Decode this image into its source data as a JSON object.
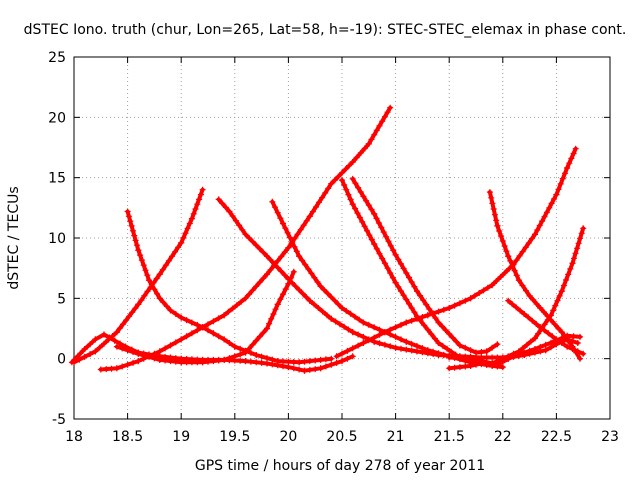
{
  "chart_data": {
    "type": "scatter",
    "title": "dSTEC Iono. truth (chur, Lon=265, Lat=58, h=-19): STEC-STEC_elemax in phase cont.",
    "xlabel": "GPS time / hours of day 278 of year 2011",
    "ylabel": "dSTEC  / TECUs",
    "xlim": [
      18,
      23
    ],
    "ylim": [
      -5,
      25
    ],
    "x_ticks": [
      "18",
      "18.5",
      "19",
      "19.5",
      "20",
      "20.5",
      "21",
      "21.5",
      "22",
      "22.5",
      "23"
    ],
    "y_ticks": [
      "-5",
      "0",
      "5",
      "10",
      "15",
      "20",
      "25"
    ],
    "grid": true,
    "marker": "+",
    "color": "#ff0000",
    "series": [
      {
        "x": [
          17.98,
          18.1,
          18.2,
          18.28,
          18.38,
          18.48,
          18.6,
          18.8,
          19.0,
          19.2,
          19.4,
          19.6,
          19.8,
          20.0,
          20.15,
          20.3,
          20.5,
          20.6
        ],
        "y": [
          -0.3,
          0.8,
          1.6,
          2.0,
          1.5,
          1.0,
          0.5,
          0.2,
          0.0,
          -0.1,
          -0.1,
          -0.2,
          -0.4,
          -0.7,
          -1.0,
          -0.8,
          -0.2,
          0.2
        ]
      },
      {
        "x": [
          18.0,
          18.2,
          18.4,
          18.6,
          18.8,
          19.0,
          19.1,
          19.2
        ],
        "y": [
          -0.3,
          0.6,
          2.2,
          4.5,
          7.0,
          9.6,
          11.6,
          14.0
        ]
      },
      {
        "x": [
          18.5,
          18.6,
          18.7,
          18.8,
          18.9,
          19.0,
          19.1,
          19.2,
          19.3,
          19.4,
          19.5,
          19.7,
          19.9,
          20.1,
          20.4
        ],
        "y": [
          12.2,
          9.0,
          6.5,
          5.0,
          4.0,
          3.4,
          3.0,
          2.6,
          2.1,
          1.6,
          1.0,
          0.3,
          -0.2,
          -0.3,
          0.0
        ]
      },
      {
        "x": [
          18.25,
          18.4,
          18.6,
          18.8,
          19.0,
          19.2,
          19.4,
          19.6,
          19.8,
          20.0,
          20.2,
          20.4,
          20.6,
          20.75,
          20.85,
          20.95
        ],
        "y": [
          -0.9,
          -0.8,
          -0.2,
          0.6,
          1.6,
          2.6,
          3.6,
          5.0,
          7.0,
          9.2,
          11.8,
          14.5,
          16.3,
          17.8,
          19.3,
          20.8
        ]
      },
      {
        "x": [
          18.4,
          18.6,
          18.8,
          19.0,
          19.2,
          19.4,
          19.6,
          19.8,
          19.9,
          20.0,
          20.05
        ],
        "y": [
          1.0,
          0.4,
          -0.1,
          -0.3,
          -0.3,
          -0.1,
          0.5,
          2.5,
          4.5,
          6.2,
          7.2
        ]
      },
      {
        "x": [
          19.35,
          19.45,
          19.6,
          19.8,
          20.0,
          20.2,
          20.4,
          20.6,
          20.8,
          21.0,
          21.2,
          21.4,
          21.6,
          21.8,
          22.0,
          22.2
        ],
        "y": [
          13.2,
          12.2,
          10.3,
          8.5,
          6.6,
          4.8,
          3.3,
          2.2,
          1.4,
          0.9,
          0.6,
          0.3,
          0.2,
          0.1,
          0.1,
          0.3
        ]
      },
      {
        "x": [
          19.85,
          19.95,
          20.1,
          20.3,
          20.5,
          20.7,
          20.9,
          21.1,
          21.3,
          21.5,
          21.7,
          21.9,
          22.0
        ],
        "y": [
          13.0,
          11.2,
          8.5,
          6.0,
          4.2,
          3.0,
          2.2,
          1.4,
          0.7,
          0.2,
          -0.3,
          -0.6,
          -0.7
        ]
      },
      {
        "x": [
          20.5,
          20.6,
          20.8,
          21.0,
          21.2,
          21.4,
          21.6,
          21.8,
          21.95
        ],
        "y": [
          14.8,
          12.8,
          9.5,
          6.3,
          3.5,
          1.3,
          0.1,
          -0.3,
          -0.4
        ]
      },
      {
        "x": [
          20.6,
          20.8,
          21.0,
          21.2,
          21.4,
          21.6,
          21.75,
          21.85,
          21.95
        ],
        "y": [
          14.9,
          12.0,
          8.6,
          5.6,
          3.0,
          1.1,
          0.5,
          0.6,
          1.2
        ]
      },
      {
        "x": [
          20.45,
          20.7,
          20.9,
          21.1,
          21.3,
          21.5,
          21.7,
          21.9,
          22.1,
          22.3,
          22.5,
          22.6,
          22.68
        ],
        "y": [
          0.2,
          1.3,
          2.2,
          3.0,
          3.6,
          4.2,
          5.0,
          6.1,
          7.8,
          10.3,
          13.6,
          15.8,
          17.4
        ]
      },
      {
        "x": [
          21.5,
          21.7,
          21.9,
          22.0,
          22.2,
          22.4,
          22.5,
          22.6,
          22.7
        ],
        "y": [
          0.1,
          0.0,
          -0.4,
          0.0,
          0.3,
          0.7,
          1.2,
          1.6,
          1.3
        ]
      },
      {
        "x": [
          21.88,
          21.95,
          22.05,
          22.15,
          22.25,
          22.35,
          22.45,
          22.55,
          22.65,
          22.72
        ],
        "y": [
          13.8,
          11.0,
          8.5,
          6.5,
          5.2,
          4.2,
          3.2,
          2.2,
          1.0,
          0.0
        ]
      },
      {
        "x": [
          22.05,
          22.2,
          22.35,
          22.5,
          22.6,
          22.7,
          22.75
        ],
        "y": [
          4.8,
          3.7,
          2.6,
          1.6,
          1.0,
          0.6,
          0.4
        ]
      },
      {
        "x": [
          22.0,
          22.15,
          22.3,
          22.45,
          22.55,
          22.65,
          22.75
        ],
        "y": [
          0.0,
          0.6,
          1.7,
          3.6,
          5.6,
          7.9,
          10.8
        ]
      },
      {
        "x": [
          21.5,
          21.7,
          21.85,
          21.95,
          22.1,
          22.3,
          22.5,
          22.6,
          22.72
        ],
        "y": [
          -0.8,
          -0.6,
          -0.3,
          -0.5,
          0.2,
          0.8,
          1.5,
          1.9,
          1.8
        ]
      }
    ]
  }
}
